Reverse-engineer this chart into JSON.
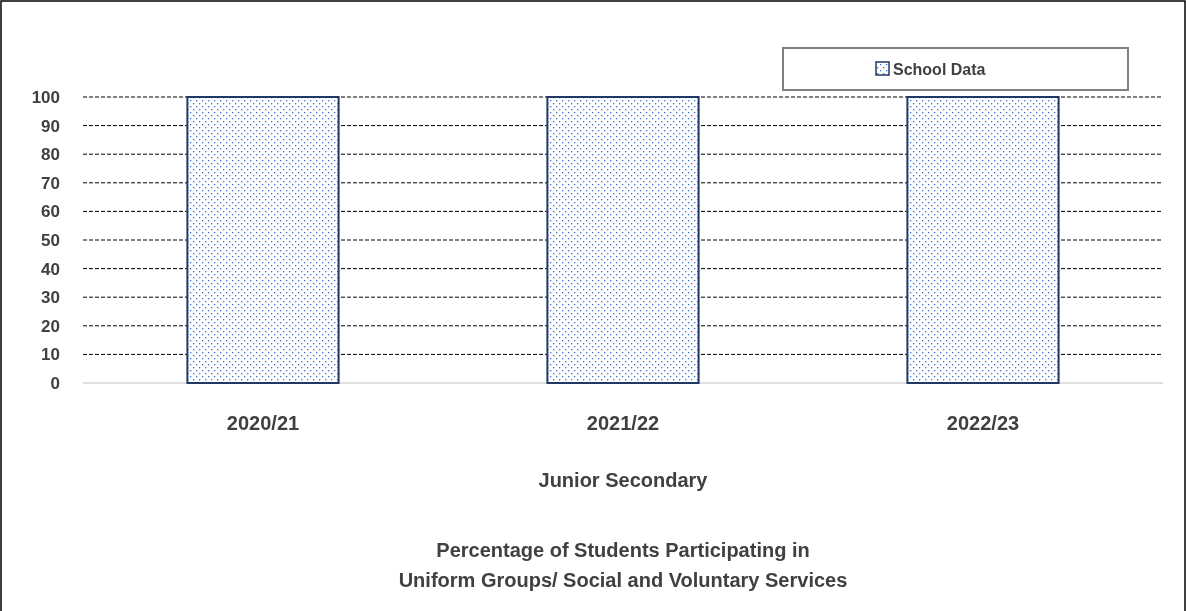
{
  "chart_data": {
    "type": "bar",
    "title": "Percentage of Students Participating in\nUniform Groups/ Social and Voluntary Services",
    "xlabel": "Junior Secondary",
    "categories": [
      "2020/21",
      "2021/22",
      "2022/23"
    ],
    "series": [
      {
        "name": "School Data",
        "color": "#1f3864",
        "values": [
          100,
          100,
          100
        ]
      }
    ],
    "ylim": [
      0,
      100
    ],
    "yticks": [
      0,
      10,
      20,
      30,
      40,
      50,
      60,
      70,
      80,
      90,
      100
    ],
    "grid": "y",
    "legend": "top right"
  }
}
